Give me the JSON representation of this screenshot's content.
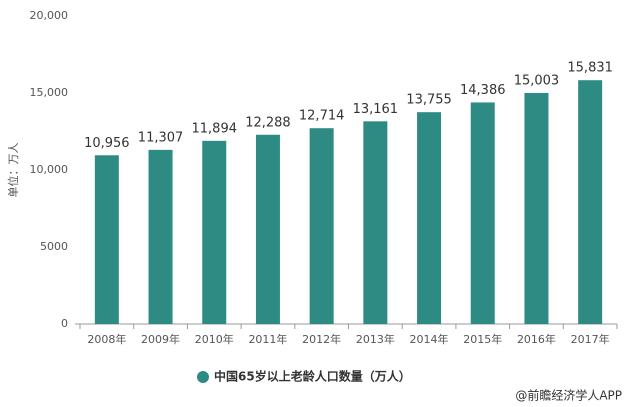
{
  "chart_data": {
    "type": "bar",
    "y_axis_label": "单位：万人",
    "categories": [
      "2008年",
      "2009年",
      "2010年",
      "2011年",
      "2012年",
      "2013年",
      "2014年",
      "2015年",
      "2016年",
      "2017年"
    ],
    "series": [
      {
        "name": "中国65岁以上老龄人口数量（万人）",
        "color": "#2e8b84",
        "values": [
          10956,
          11307,
          11894,
          12288,
          12714,
          13161,
          13755,
          14386,
          15003,
          15831
        ],
        "value_labels": [
          "10,956",
          "11,307",
          "11,894",
          "12,288",
          "12,714",
          "13,161",
          "13,755",
          "14,386",
          "15,003",
          "15,831"
        ]
      }
    ],
    "ylim": [
      0,
      20000
    ],
    "yticks": [
      0,
      5000,
      {
        "value": 10000,
        "label": "10,000"
      },
      {
        "value": 15000,
        "label": "15,000"
      },
      {
        "value": 20000,
        "label": "20,000"
      }
    ],
    "grid": false,
    "source": "@前瞻经济学人APP"
  }
}
